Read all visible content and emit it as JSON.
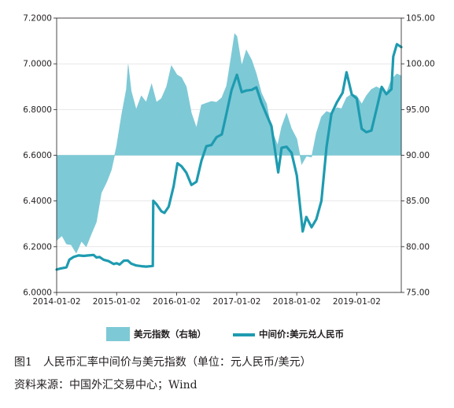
{
  "caption": {
    "figure": "图1　人民币汇率中间价与美元指数（单位：元人民币/美元）",
    "source": "资料来源：中国外汇交易中心；Wind"
  },
  "chart_data": {
    "type": "area+line",
    "title": "",
    "x_tick_labels": [
      "2014-01-02",
      "2015-01-02",
      "2016-01-02",
      "2017-01-02",
      "2018-01-02",
      "2019-01-02"
    ],
    "x_range": [
      "2014-01-02",
      "2019-09-30"
    ],
    "y_left": {
      "lim": [
        6.0,
        7.2
      ],
      "ticks": [
        "6.0000",
        "6.2000",
        "6.4000",
        "6.6000",
        "6.8000",
        "7.0000",
        "7.2000"
      ]
    },
    "y_right": {
      "lim": [
        75,
        105
      ],
      "ticks": [
        "75.00",
        "80.00",
        "85.00",
        "90.00",
        "95.00",
        "100.00",
        "105.00"
      ],
      "baseline": 90
    },
    "grid": true,
    "legend_position": "bottom",
    "series": [
      {
        "name": "美元指数（右轴）",
        "type": "area",
        "axis": "right",
        "color": "#7ec9d6",
        "points": [
          [
            "2014-01-02",
            80.7
          ],
          [
            "2014-02-03",
            81.2
          ],
          [
            "2014-03-03",
            80.3
          ],
          [
            "2014-04-01",
            80.2
          ],
          [
            "2014-05-01",
            79.3
          ],
          [
            "2014-06-02",
            80.6
          ],
          [
            "2014-07-01",
            80.0
          ],
          [
            "2014-08-01",
            81.4
          ],
          [
            "2014-09-01",
            82.7
          ],
          [
            "2014-10-01",
            85.9
          ],
          [
            "2014-11-03",
            87.1
          ],
          [
            "2014-12-01",
            88.4
          ],
          [
            "2015-01-02",
            91.0
          ],
          [
            "2015-02-02",
            94.5
          ],
          [
            "2015-03-02",
            97.2
          ],
          [
            "2015-03-13",
            99.9
          ],
          [
            "2015-04-01",
            97.0
          ],
          [
            "2015-05-01",
            95.0
          ],
          [
            "2015-06-01",
            96.5
          ],
          [
            "2015-07-01",
            95.8
          ],
          [
            "2015-08-03",
            97.8
          ],
          [
            "2015-09-01",
            95.8
          ],
          [
            "2015-10-01",
            96.2
          ],
          [
            "2015-11-02",
            97.5
          ],
          [
            "2015-12-01",
            99.8
          ],
          [
            "2016-01-04",
            98.8
          ],
          [
            "2016-02-01",
            98.5
          ],
          [
            "2016-03-01",
            97.5
          ],
          [
            "2016-04-01",
            94.6
          ],
          [
            "2016-05-02",
            93.0
          ],
          [
            "2016-06-01",
            95.5
          ],
          [
            "2016-07-01",
            95.7
          ],
          [
            "2016-08-01",
            95.9
          ],
          [
            "2016-09-01",
            95.8
          ],
          [
            "2016-10-03",
            96.3
          ],
          [
            "2016-11-01",
            97.6
          ],
          [
            "2016-12-01",
            101.0
          ],
          [
            "2016-12-20",
            103.3
          ],
          [
            "2017-01-03",
            103.0
          ],
          [
            "2017-02-01",
            99.8
          ],
          [
            "2017-03-01",
            101.5
          ],
          [
            "2017-04-03",
            100.4
          ],
          [
            "2017-05-01",
            98.9
          ],
          [
            "2017-06-01",
            96.8
          ],
          [
            "2017-07-03",
            95.6
          ],
          [
            "2017-08-01",
            92.8
          ],
          [
            "2017-09-08",
            91.1
          ],
          [
            "2017-10-02",
            93.1
          ],
          [
            "2017-11-01",
            94.6
          ],
          [
            "2017-12-01",
            92.9
          ],
          [
            "2018-01-02",
            91.8
          ],
          [
            "2018-02-01",
            89.0
          ],
          [
            "2018-03-01",
            89.9
          ],
          [
            "2018-04-02",
            89.8
          ],
          [
            "2018-05-01",
            92.4
          ],
          [
            "2018-06-01",
            94.2
          ],
          [
            "2018-07-02",
            94.8
          ],
          [
            "2018-08-01",
            94.6
          ],
          [
            "2018-09-03",
            95.2
          ],
          [
            "2018-10-01",
            95.1
          ],
          [
            "2018-11-01",
            96.3
          ],
          [
            "2018-12-03",
            96.7
          ],
          [
            "2019-01-02",
            96.5
          ],
          [
            "2019-02-01",
            95.6
          ],
          [
            "2019-03-01",
            96.5
          ],
          [
            "2019-04-01",
            97.2
          ],
          [
            "2019-05-01",
            97.5
          ],
          [
            "2019-06-03",
            97.2
          ],
          [
            "2019-07-01",
            96.8
          ],
          [
            "2019-08-01",
            98.3
          ],
          [
            "2019-09-03",
            98.9
          ],
          [
            "2019-09-30",
            98.7
          ]
        ]
      },
      {
        "name": "中间价:美元兑人民币",
        "type": "line",
        "axis": "left",
        "color": "#1e9bb0",
        "points": [
          [
            "2014-01-02",
            6.1
          ],
          [
            "2014-01-20",
            6.104
          ],
          [
            "2014-02-10",
            6.107
          ],
          [
            "2014-03-03",
            6.11
          ],
          [
            "2014-03-20",
            6.143
          ],
          [
            "2014-04-15",
            6.155
          ],
          [
            "2014-05-15",
            6.162
          ],
          [
            "2014-06-15",
            6.16
          ],
          [
            "2014-07-15",
            6.162
          ],
          [
            "2014-08-15",
            6.164
          ],
          [
            "2014-09-01",
            6.153
          ],
          [
            "2014-09-20",
            6.155
          ],
          [
            "2014-10-15",
            6.143
          ],
          [
            "2014-11-15",
            6.137
          ],
          [
            "2014-12-15",
            6.124
          ],
          [
            "2015-01-02",
            6.128
          ],
          [
            "2015-01-20",
            6.122
          ],
          [
            "2015-02-15",
            6.139
          ],
          [
            "2015-03-10",
            6.14
          ],
          [
            "2015-04-01",
            6.126
          ],
          [
            "2015-05-01",
            6.118
          ],
          [
            "2015-06-01",
            6.115
          ],
          [
            "2015-07-01",
            6.113
          ],
          [
            "2015-08-10",
            6.116
          ],
          [
            "2015-08-11",
            6.23
          ],
          [
            "2015-08-12",
            6.33
          ],
          [
            "2015-08-13",
            6.401
          ],
          [
            "2015-09-01",
            6.386
          ],
          [
            "2015-10-01",
            6.355
          ],
          [
            "2015-10-20",
            6.348
          ],
          [
            "2015-11-15",
            6.375
          ],
          [
            "2015-12-15",
            6.465
          ],
          [
            "2016-01-07",
            6.565
          ],
          [
            "2016-02-01",
            6.552
          ],
          [
            "2016-03-01",
            6.524
          ],
          [
            "2016-04-01",
            6.47
          ],
          [
            "2016-05-02",
            6.484
          ],
          [
            "2016-06-01",
            6.576
          ],
          [
            "2016-07-01",
            6.64
          ],
          [
            "2016-08-01",
            6.645
          ],
          [
            "2016-09-01",
            6.679
          ],
          [
            "2016-10-03",
            6.691
          ],
          [
            "2016-11-01",
            6.785
          ],
          [
            "2016-12-01",
            6.884
          ],
          [
            "2017-01-03",
            6.952
          ],
          [
            "2017-02-01",
            6.876
          ],
          [
            "2017-03-01",
            6.883
          ],
          [
            "2017-04-03",
            6.886
          ],
          [
            "2017-05-01",
            6.897
          ],
          [
            "2017-06-01",
            6.83
          ],
          [
            "2017-07-03",
            6.776
          ],
          [
            "2017-08-01",
            6.728
          ],
          [
            "2017-09-11",
            6.525
          ],
          [
            "2017-10-02",
            6.633
          ],
          [
            "2017-11-01",
            6.637
          ],
          [
            "2017-12-01",
            6.611
          ],
          [
            "2018-01-02",
            6.512
          ],
          [
            "2018-02-07",
            6.267
          ],
          [
            "2018-03-01",
            6.33
          ],
          [
            "2018-04-02",
            6.285
          ],
          [
            "2018-05-01",
            6.32
          ],
          [
            "2018-06-01",
            6.401
          ],
          [
            "2018-07-02",
            6.636
          ],
          [
            "2018-08-01",
            6.781
          ],
          [
            "2018-09-03",
            6.831
          ],
          [
            "2018-10-08",
            6.873
          ],
          [
            "2018-11-01",
            6.963
          ],
          [
            "2018-12-03",
            6.866
          ],
          [
            "2019-01-02",
            6.848
          ],
          [
            "2019-02-01",
            6.716
          ],
          [
            "2019-03-01",
            6.701
          ],
          [
            "2019-04-01",
            6.708
          ],
          [
            "2019-05-06",
            6.812
          ],
          [
            "2019-06-03",
            6.899
          ],
          [
            "2019-07-01",
            6.867
          ],
          [
            "2019-08-01",
            6.889
          ],
          [
            "2019-08-12",
            7.032
          ],
          [
            "2019-09-03",
            7.086
          ],
          [
            "2019-09-30",
            7.073
          ]
        ]
      }
    ]
  }
}
